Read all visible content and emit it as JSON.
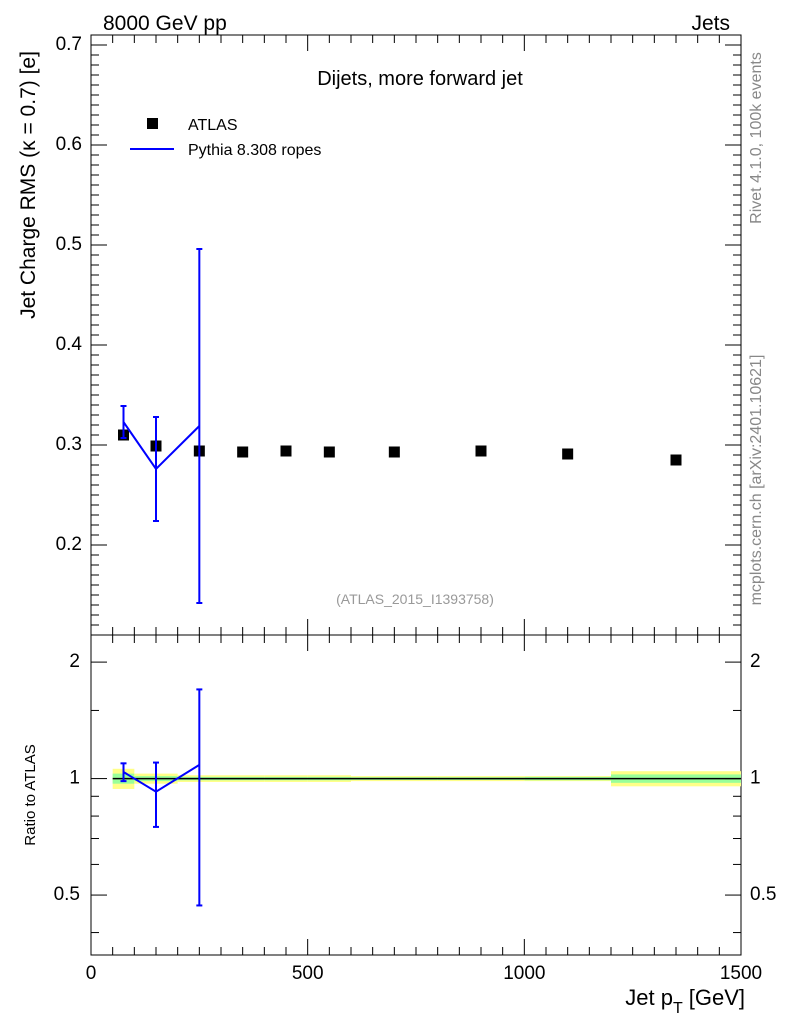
{
  "header": {
    "left": "8000 GeV pp",
    "right": "Jets"
  },
  "side_text": {
    "top": "Rivet 4.1.0,  100k events",
    "bottom": "mcplots.cern.ch [arXiv:2401.10621]"
  },
  "watermark": "(ATLAS_2015_I1393758)",
  "colors": {
    "data": "#000000",
    "mc": "#0000ff",
    "band_inner": "#99ff99",
    "band_outer": "#ffff88"
  },
  "chart_data": [
    {
      "type": "scatter",
      "title": "Dijets, more forward jet",
      "xlabel": "Jet p",
      "xlabel_sub": "T",
      "xlabel_unit": "[GeV]",
      "ylabel": "Jet Charge RMS (κ = 0.7) [e]",
      "xlim": [
        0,
        1500
      ],
      "ylim": [
        0.11,
        0.71
      ],
      "x_ticks": [
        "0",
        "500",
        "1000",
        "1500"
      ],
      "y_ticks": [
        "0.2",
        "0.3",
        "0.4",
        "0.5",
        "0.6",
        "0.7"
      ],
      "legend": [
        "ATLAS",
        "Pythia 8.308 ropes"
      ],
      "legend_position": "top-left",
      "series": [
        {
          "name": "ATLAS",
          "x": [
            75,
            150,
            250,
            350,
            450,
            550,
            700,
            900,
            1100,
            1350
          ],
          "y": [
            0.31,
            0.299,
            0.294,
            0.293,
            0.294,
            0.293,
            0.293,
            0.294,
            0.291,
            0.285
          ]
        },
        {
          "name": "Pythia 8.308 ropes",
          "x": [
            75,
            150,
            250
          ],
          "y": [
            0.323,
            0.276,
            0.319
          ],
          "err": [
            0.016,
            0.052,
            0.177
          ]
        }
      ]
    },
    {
      "type": "line",
      "ylabel": "Ratio to ATLAS",
      "xlim": [
        0,
        1500
      ],
      "ylim": [
        0.35,
        2.35
      ],
      "y_scale": "log",
      "y_ticks": [
        "0.5",
        "1",
        "2"
      ],
      "series": [
        {
          "name": "Pythia 8.308 ropes",
          "x": [
            75,
            150,
            250
          ],
          "y": [
            1.04,
            0.925,
            1.085
          ],
          "err": [
            0.055,
            0.175,
            0.615
          ]
        }
      ],
      "data_band": {
        "x_edges": [
          50,
          100,
          200,
          300,
          400,
          500,
          600,
          800,
          1000,
          1200,
          1500
        ],
        "inner": [
          0.03,
          0.015,
          0.01,
          0.01,
          0.01,
          0.01,
          0.008,
          0.008,
          0.01,
          0.025
        ],
        "outer": [
          0.06,
          0.03,
          0.02,
          0.02,
          0.02,
          0.02,
          0.015,
          0.015,
          0.015,
          0.045
        ]
      }
    }
  ]
}
